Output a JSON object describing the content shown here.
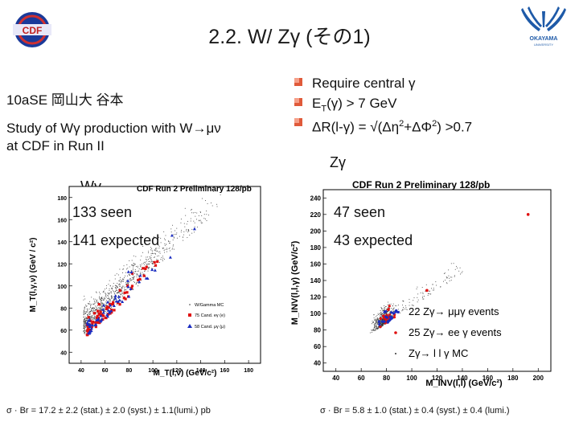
{
  "title": "2.2.  W/ Zγ (その1)",
  "author": "10aSE 岡山大 谷本",
  "study": [
    "Study of Wγ production with W→μν",
    "at CDF in Run II"
  ],
  "requirements": {
    "line1": "Require central γ",
    "line2_pre": "E",
    "line2_sub": "T",
    "line2_post": "(γ) > 7 GeV",
    "line3_pre": "ΔR(l-γ) = √(Δη",
    "line3_sup1": "2",
    "line3_mid": "+ΔΦ",
    "line3_sup2": "2",
    "line3_post": ") >0.7"
  },
  "wg": {
    "label": "Wγ",
    "seen": "133 seen",
    "expected": "141 expected",
    "plot_title": "CDF Run 2 Preliminary 128/pb",
    "ylabel": "M_T(l,γ,ν) (GeV / c²)",
    "xlabel": "M_T(l,ν) (GeV/c²)",
    "xticks": [
      "40",
      "60",
      "80",
      "100",
      "120",
      "140",
      "160",
      "180"
    ],
    "yticks": [
      "40",
      "60",
      "80",
      "100",
      "120",
      "140",
      "160",
      "180"
    ],
    "legend": [
      "W/Gamma MC",
      "75 Cand. eγ (e)",
      "58 Cand. μγ (μ)"
    ],
    "sigma": "σ · Br = 17.2 ± 2.2 (stat.) ± 2.0 (syst.) ± 1.1(lumi.) pb"
  },
  "zg": {
    "label": "Zγ",
    "seen": "47 seen",
    "expected": "43 expected",
    "plot_title": "CDF Run 2 Preliminary 128/pb",
    "ylabel": "M_INV(l,l,γ) (GeV/c²)",
    "xlabel": "M_INV(l,l) (GeV/c²)",
    "xticks": [
      "40",
      "60",
      "80",
      "100",
      "120",
      "140",
      "160",
      "180",
      "200"
    ],
    "yticks": [
      "40",
      "60",
      "80",
      "100",
      "120",
      "140",
      "160",
      "180",
      "200",
      "220",
      "240"
    ],
    "legend": [
      "22 Zγ→ μμγ events",
      "25 Zγ→ ee γ events",
      "Zγ→ l l γ MC"
    ],
    "sigma": "σ · Br = 5.8 ± 1.0 (stat.) ± 0.4 (syst.) ± 0.4 (lumi.)"
  },
  "colors": {
    "electron": "#e01010",
    "muon": "#1a2cc0",
    "mc": "#333333",
    "bullet": "#e05a3a"
  },
  "icons": {
    "left_logo": "cdf-logo",
    "right_logo": "okayama-logo"
  }
}
